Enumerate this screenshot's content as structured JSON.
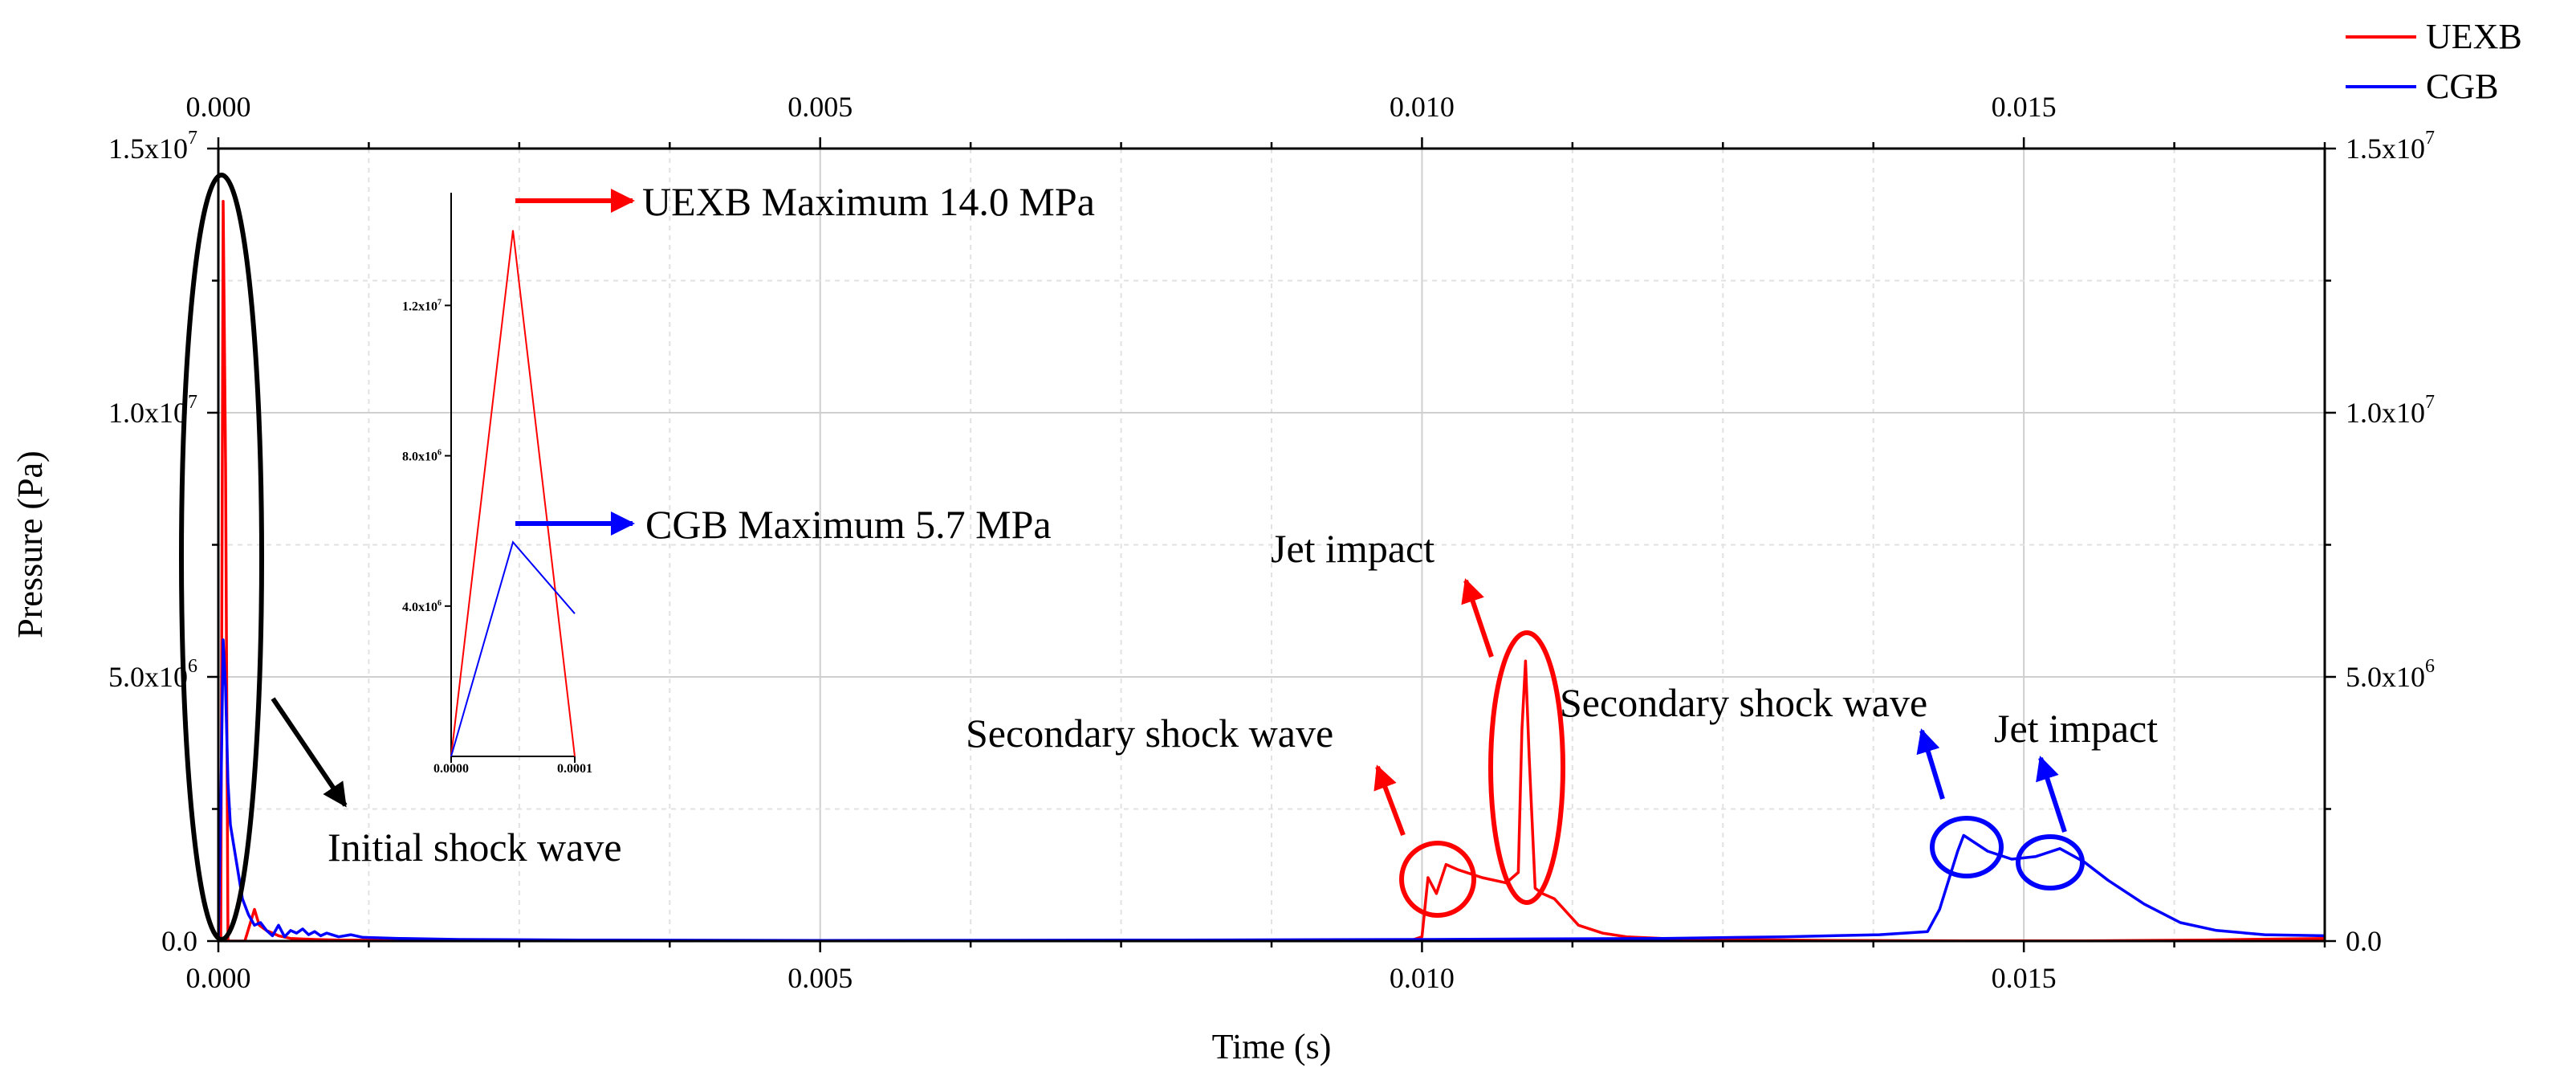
{
  "chart_data": {
    "type": "line",
    "xlabel": "Time (s)",
    "ylabel": "Pressure (Pa)",
    "xlim": [
      0.0,
      0.0175
    ],
    "ylim": [
      0.0,
      15000000
    ],
    "grid": true,
    "x_ticks": [
      {
        "value": 0.0,
        "label": "0.000"
      },
      {
        "value": 0.005,
        "label": "0.005"
      },
      {
        "value": 0.01,
        "label": "0.010"
      },
      {
        "value": 0.015,
        "label": "0.015"
      }
    ],
    "y_ticks": [
      {
        "value": 0,
        "base": "0.0",
        "exp": ""
      },
      {
        "value": 5000000,
        "base": "5.0x10",
        "exp": "6"
      },
      {
        "value": 10000000,
        "base": "1.0x10",
        "exp": "7"
      },
      {
        "value": 15000000,
        "base": "1.5x10",
        "exp": "7"
      }
    ],
    "legend_position": "top-right",
    "series": [
      {
        "name": "UEXB",
        "color": "#ff0000",
        "points": [
          [
            0.0,
            0
          ],
          [
            2e-05,
            0
          ],
          [
            4e-05,
            14000000
          ],
          [
            6e-05,
            9000000
          ],
          [
            8e-05,
            0
          ],
          [
            0.00015,
            0
          ],
          [
            0.00022,
            0
          ],
          [
            0.0003,
            600000
          ],
          [
            0.00034,
            300000
          ],
          [
            0.0004,
            200000
          ],
          [
            0.0005,
            100000
          ],
          [
            0.0006,
            50000
          ],
          [
            0.0008,
            30000
          ],
          [
            0.001,
            20000
          ],
          [
            0.002,
            8000
          ],
          [
            0.004,
            4000
          ],
          [
            0.006,
            3000
          ],
          [
            0.008,
            3000
          ],
          [
            0.0099,
            5000
          ],
          [
            0.01,
            80000
          ],
          [
            0.01005,
            1200000
          ],
          [
            0.01012,
            900000
          ],
          [
            0.0102,
            1450000
          ],
          [
            0.0103,
            1350000
          ],
          [
            0.0105,
            1200000
          ],
          [
            0.0107,
            1100000
          ],
          [
            0.0108,
            1300000
          ],
          [
            0.01083,
            4000000
          ],
          [
            0.01086,
            5300000
          ],
          [
            0.01089,
            3500000
          ],
          [
            0.01094,
            1000000
          ],
          [
            0.011,
            900000
          ],
          [
            0.0111,
            800000
          ],
          [
            0.0112,
            550000
          ],
          [
            0.0113,
            300000
          ],
          [
            0.0115,
            150000
          ],
          [
            0.0117,
            80000
          ],
          [
            0.012,
            50000
          ],
          [
            0.0125,
            30000
          ],
          [
            0.0135,
            10000
          ],
          [
            0.0145,
            5000
          ],
          [
            0.0155,
            5000
          ],
          [
            0.0165,
            20000
          ],
          [
            0.0175,
            50000
          ]
        ]
      },
      {
        "name": "CGB",
        "color": "#0000ff",
        "points": [
          [
            0.0,
            0
          ],
          [
            2e-05,
            2500000
          ],
          [
            4e-05,
            5700000
          ],
          [
            6e-05,
            4800000
          ],
          [
            8e-05,
            3000000
          ],
          [
            0.0001,
            2200000
          ],
          [
            0.00015,
            1500000
          ],
          [
            0.0002,
            800000
          ],
          [
            0.00025,
            500000
          ],
          [
            0.0003,
            300000
          ],
          [
            0.00035,
            350000
          ],
          [
            0.0004,
            200000
          ],
          [
            0.00045,
            100000
          ],
          [
            0.0005,
            300000
          ],
          [
            0.00055,
            80000
          ],
          [
            0.0006,
            200000
          ],
          [
            0.00065,
            150000
          ],
          [
            0.0007,
            230000
          ],
          [
            0.00075,
            120000
          ],
          [
            0.0008,
            180000
          ],
          [
            0.00085,
            100000
          ],
          [
            0.0009,
            150000
          ],
          [
            0.001,
            80000
          ],
          [
            0.0011,
            120000
          ],
          [
            0.0012,
            70000
          ],
          [
            0.0015,
            50000
          ],
          [
            0.002,
            30000
          ],
          [
            0.003,
            20000
          ],
          [
            0.005,
            10000
          ],
          [
            0.008,
            20000
          ],
          [
            0.01,
            30000
          ],
          [
            0.012,
            50000
          ],
          [
            0.013,
            80000
          ],
          [
            0.0138,
            120000
          ],
          [
            0.0142,
            180000
          ],
          [
            0.0143,
            600000
          ],
          [
            0.01445,
            1700000
          ],
          [
            0.0145,
            2000000
          ],
          [
            0.0147,
            1700000
          ],
          [
            0.0149,
            1550000
          ],
          [
            0.0151,
            1600000
          ],
          [
            0.0153,
            1750000
          ],
          [
            0.0155,
            1500000
          ],
          [
            0.0157,
            1150000
          ],
          [
            0.016,
            700000
          ],
          [
            0.0163,
            350000
          ],
          [
            0.0166,
            200000
          ],
          [
            0.017,
            120000
          ],
          [
            0.0175,
            100000
          ]
        ]
      }
    ],
    "inset": {
      "xlim": [
        0.0,
        0.0001
      ],
      "ylim": [
        0.0,
        15000000
      ],
      "x_tick_labels": [
        "0.0000",
        "0.0001"
      ],
      "y_ticks": [
        {
          "value": 4000000,
          "base": "4.0x10",
          "exp": "6"
        },
        {
          "value": 8000000,
          "base": "8.0x10",
          "exp": "6"
        },
        {
          "value": 12000000,
          "base": "1.2x10",
          "exp": "7"
        }
      ],
      "series": [
        {
          "name": "UEXB",
          "color": "#ff0000",
          "points": [
            [
              0.0,
              0
            ],
            [
              5e-05,
              14000000
            ],
            [
              0.0001,
              0
            ]
          ]
        },
        {
          "name": "CGB",
          "color": "#0000ff",
          "points": [
            [
              0.0,
              0
            ],
            [
              5e-05,
              5700000
            ],
            [
              0.0001,
              3800000
            ]
          ]
        }
      ]
    },
    "annotations": {
      "uexb_max": "UEXB Maximum 14.0 MPa",
      "cgb_max": "CGB Maximum 5.7 MPa",
      "initial": "Initial shock wave",
      "red_secondary": "Secondary shock wave",
      "red_jet": "Jet impact",
      "blue_secondary": "Secondary shock wave",
      "blue_jet": "Jet impact"
    }
  }
}
